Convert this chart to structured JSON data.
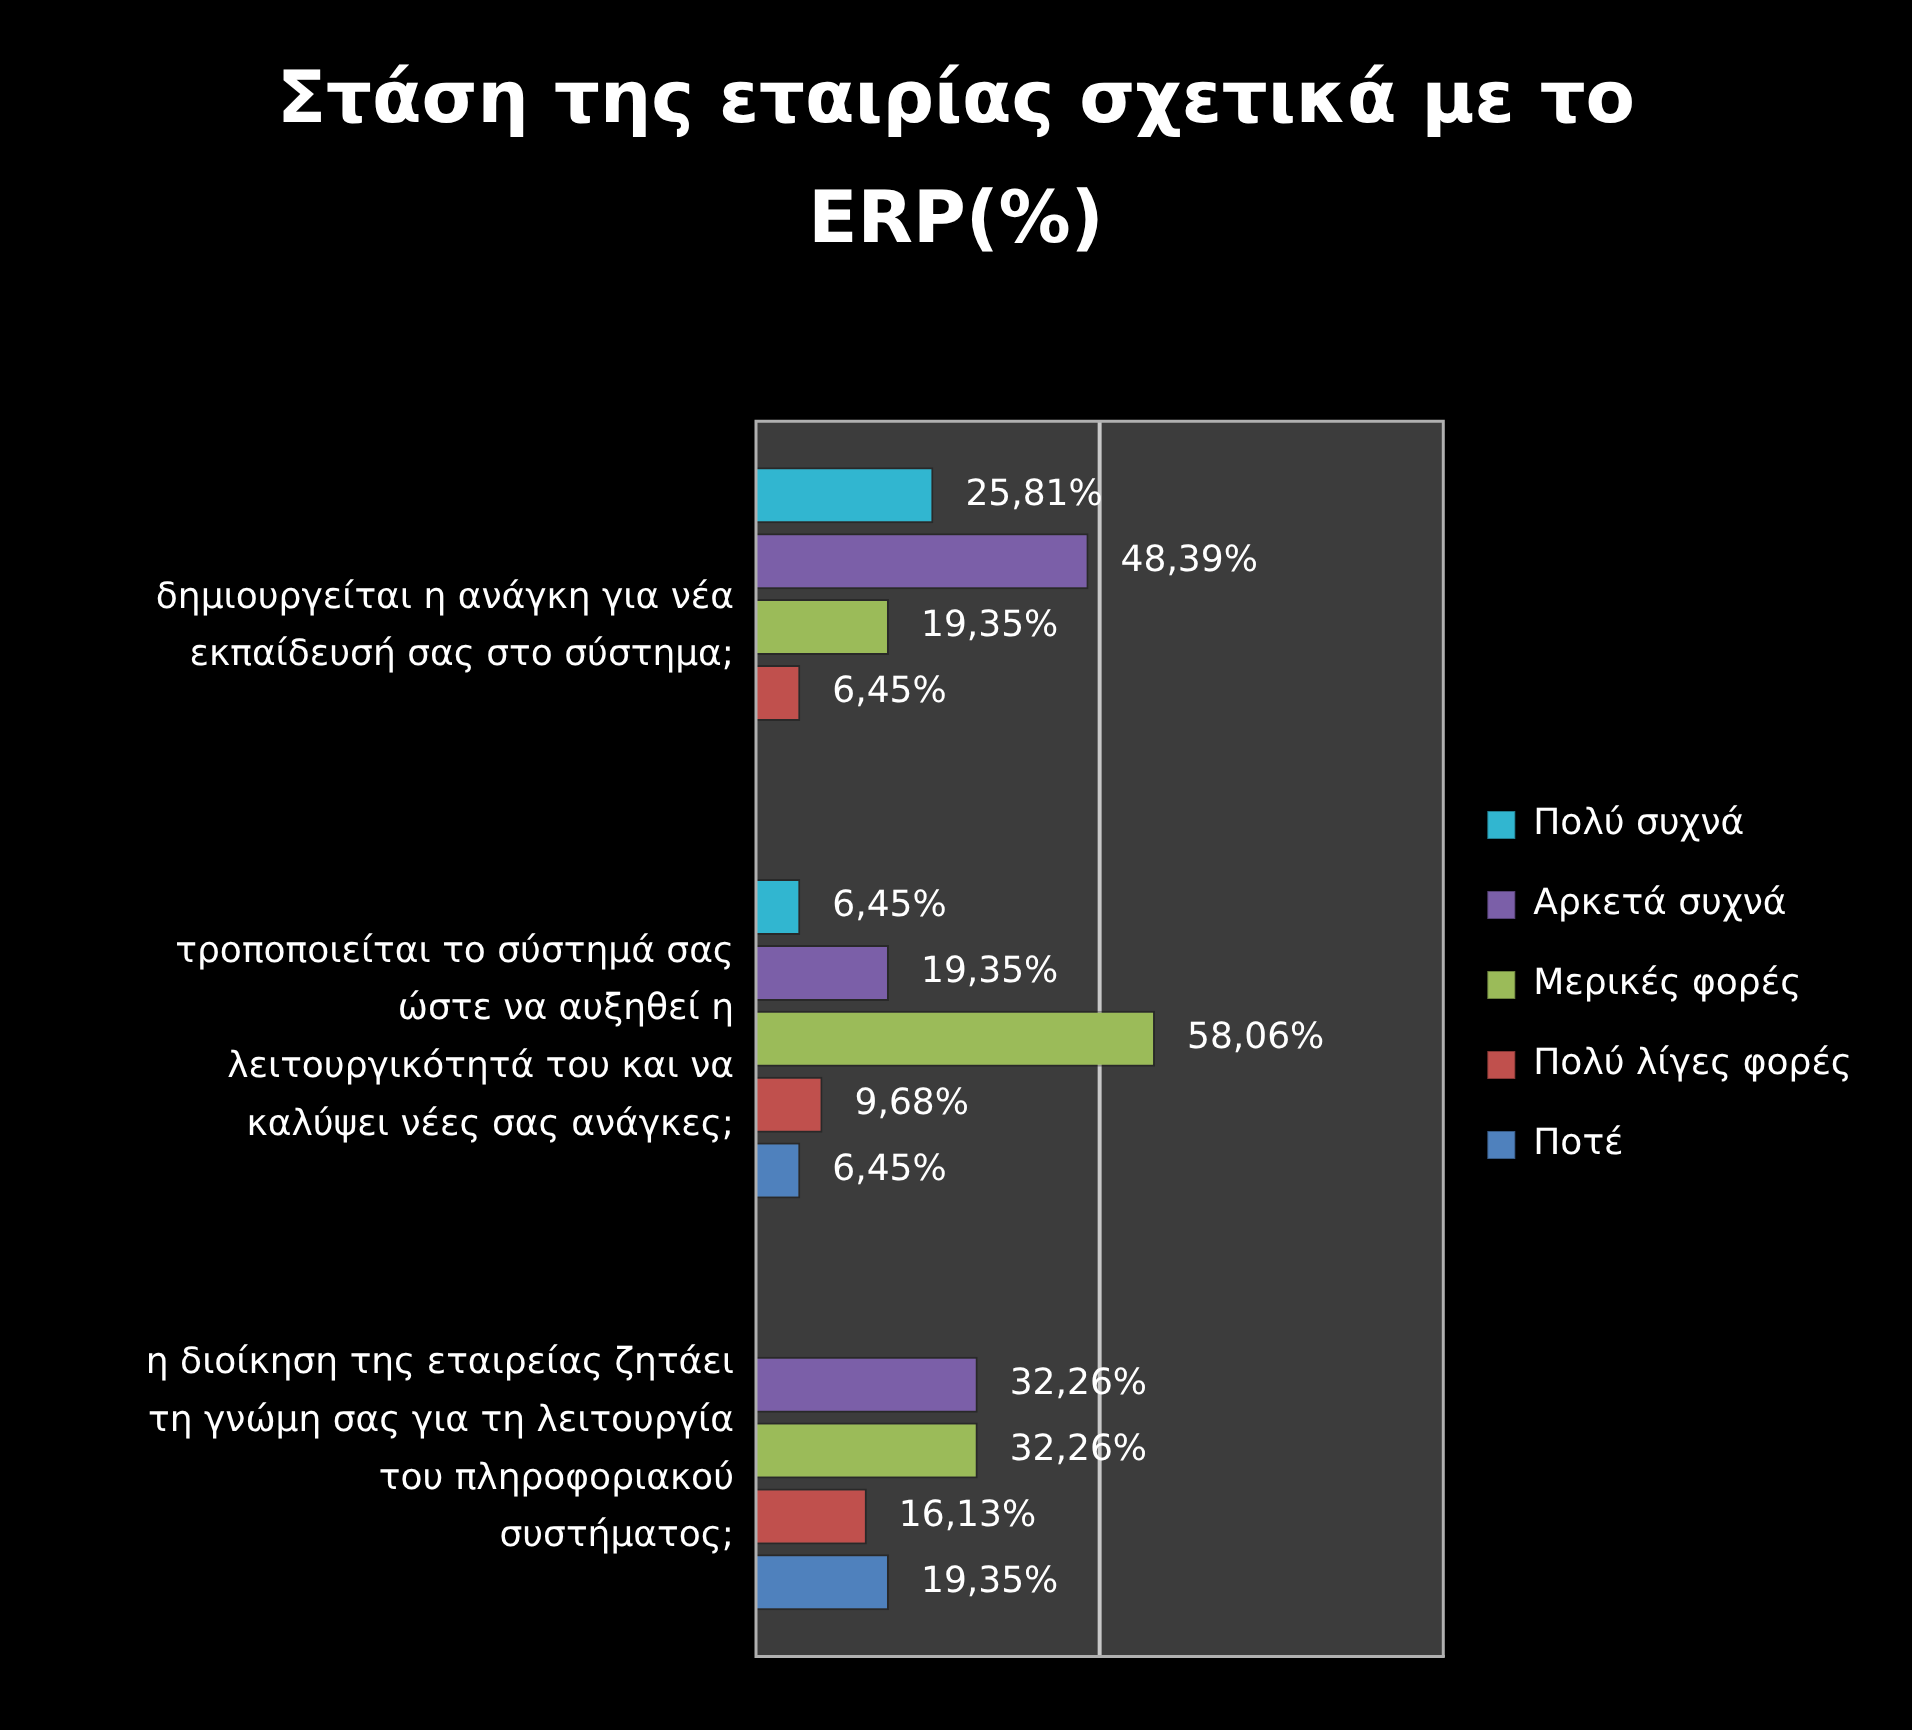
{
  "chart_data": {
    "type": "bar",
    "orientation": "horizontal",
    "title": "Στάση της εταιρίας σχετικά με το ERP(%)",
    "categories": [
      "δημιουργείται η ανάγκη για νέα εκπαίδευσή σας στο σύστημα;",
      "τροποποιείται το σύστημά σας ώστε να αυξηθεί η λειτουργικότητά του και να καλύψει νέες σας ανάγκες;",
      "η διοίκηση της εταιρείας ζητάει τη γνώμη σας για τη λειτουργία του πληροφοριακού συστήματος;"
    ],
    "series": [
      {
        "name": "Πολύ συχνά",
        "color": "#31b6d0",
        "values": [
          25.81,
          6.45,
          null
        ],
        "value_labels": [
          "25,81%",
          "6,45%",
          null
        ]
      },
      {
        "name": "Αρκετά συχνά",
        "color": "#7b5fa8",
        "values": [
          48.39,
          19.35,
          32.26
        ],
        "value_labels": [
          "48,39%",
          "19,35%",
          "32,26%"
        ]
      },
      {
        "name": "Μερικές φορές",
        "color": "#9bbb59",
        "values": [
          19.35,
          58.06,
          32.26
        ],
        "value_labels": [
          "19,35%",
          "58,06%",
          "32,26%"
        ]
      },
      {
        "name": "Πολύ λίγες φορές",
        "color": "#c0504d",
        "values": [
          6.45,
          9.68,
          16.13
        ],
        "value_labels": [
          "6,45%",
          "9,68%",
          "16,13%"
        ]
      },
      {
        "name": "Ποτέ",
        "color": "#4f81bd",
        "values": [
          null,
          6.45,
          19.35
        ],
        "value_labels": [
          null,
          "6,45%",
          "19,35%"
        ]
      }
    ],
    "xlim": [
      0,
      100
    ],
    "ref_lines": [
      {
        "axis": "x",
        "value": 50,
        "color": "#c8c8c8"
      }
    ],
    "legend": "right",
    "tick_labels": "y"
  }
}
